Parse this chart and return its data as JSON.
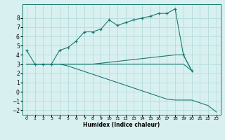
{
  "xlabel": "Humidex (Indice chaleur)",
  "x": [
    0,
    1,
    2,
    3,
    4,
    5,
    6,
    7,
    8,
    9,
    10,
    11,
    12,
    13,
    14,
    15,
    16,
    17,
    18,
    19,
    20,
    21,
    22,
    23
  ],
  "line1": [
    4.5,
    3.0,
    3.0,
    3.0,
    4.5,
    4.8,
    5.5,
    6.5,
    6.5,
    6.8,
    7.8,
    7.2,
    7.5,
    7.8,
    8.0,
    8.2,
    8.5,
    8.5,
    9.0,
    4.0,
    2.3,
    null,
    null,
    null
  ],
  "line2": [
    3.0,
    3.0,
    3.0,
    3.0,
    3.0,
    3.0,
    3.0,
    3.0,
    3.0,
    3.1,
    3.2,
    3.3,
    3.4,
    3.5,
    3.6,
    3.7,
    3.8,
    3.9,
    4.0,
    4.0,
    2.3,
    null,
    null,
    null
  ],
  "line3": [
    3.0,
    3.0,
    3.0,
    3.0,
    3.0,
    3.0,
    3.0,
    3.0,
    3.0,
    3.0,
    3.0,
    3.0,
    3.0,
    3.0,
    3.0,
    3.0,
    3.0,
    3.0,
    3.0,
    3.0,
    2.3,
    null,
    null,
    null
  ],
  "line4": [
    3.0,
    3.0,
    3.0,
    3.0,
    3.0,
    2.8,
    2.5,
    2.2,
    1.9,
    1.6,
    1.3,
    1.0,
    0.7,
    0.4,
    0.1,
    -0.2,
    -0.5,
    -0.8,
    -0.9,
    -0.9,
    -0.9,
    -1.2,
    -1.5,
    -2.2
  ],
  "line_color": "#1a7a6e",
  "bg_color": "#d9f0f0",
  "grid_color": "#b8dede",
  "ylim": [
    -2.5,
    9.5
  ],
  "xlim": [
    -0.5,
    23.5
  ],
  "yticks": [
    -2,
    -1,
    0,
    1,
    2,
    3,
    4,
    5,
    6,
    7,
    8
  ],
  "xticks": [
    0,
    1,
    2,
    3,
    4,
    5,
    6,
    7,
    8,
    9,
    10,
    11,
    12,
    13,
    14,
    15,
    16,
    17,
    18,
    19,
    20,
    21,
    22,
    23
  ]
}
